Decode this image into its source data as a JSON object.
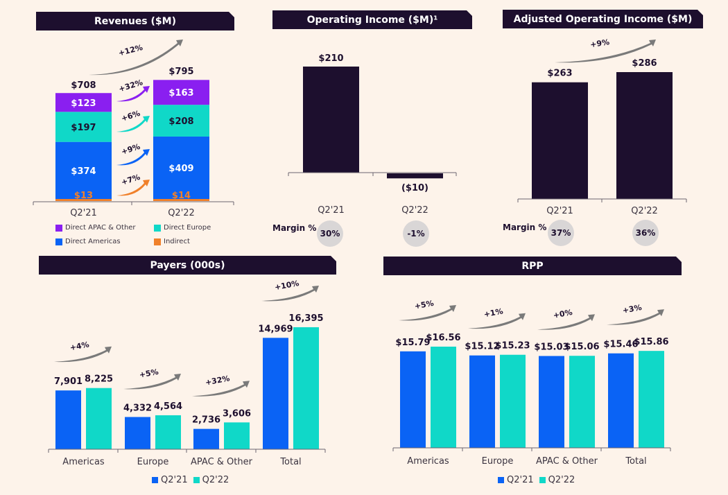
{
  "colors": {
    "dark": "#1d0f2e",
    "apac": "#8a1ff0",
    "europe": "#10d8c8",
    "americas": "#0a63f5",
    "indirect": "#f0802a",
    "arrow": "#7a7a7a",
    "bubble": "#d9d6d6"
  },
  "chart_data": [
    {
      "id": "revenues",
      "type": "bar",
      "stacked": true,
      "title": "Revenues ($M)",
      "categories": [
        "Q2'21",
        "Q2'22"
      ],
      "series": [
        {
          "name": "Indirect",
          "values": [
            13,
            14
          ],
          "labels": [
            "$13",
            "$14"
          ],
          "growth": "+7%"
        },
        {
          "name": "Direct Americas",
          "values": [
            374,
            409
          ],
          "labels": [
            "$374",
            "$409"
          ],
          "growth": "+9%"
        },
        {
          "name": "Direct Europe",
          "values": [
            197,
            208
          ],
          "labels": [
            "$197",
            "$208"
          ],
          "growth": "+6%"
        },
        {
          "name": "Direct APAC & Other",
          "values": [
            123,
            163
          ],
          "labels": [
            "$123",
            "$163"
          ],
          "growth": "+32%"
        }
      ],
      "totals": [
        708,
        795
      ],
      "total_labels": [
        "$708",
        "$795"
      ],
      "total_growth": "+12%",
      "legend": [
        "Direct APAC & Other",
        "Direct Europe",
        "Direct Americas",
        "Indirect"
      ]
    },
    {
      "id": "operating_income",
      "type": "bar",
      "title": "Operating Income ($M)¹",
      "categories": [
        "Q2'21",
        "Q2'22"
      ],
      "values": [
        210,
        -10
      ],
      "labels": [
        "$210",
        "($10)"
      ],
      "margin_label": "Margin %",
      "margins": [
        "30%",
        "-1%"
      ]
    },
    {
      "id": "adjusted_operating_income",
      "type": "bar",
      "title": "Adjusted Operating Income ($M)",
      "categories": [
        "Q2'21",
        "Q2'22"
      ],
      "values": [
        263,
        286
      ],
      "labels": [
        "$263",
        "$286"
      ],
      "growth": "+9%",
      "margin_label": "Margin %",
      "margins": [
        "37%",
        "36%"
      ]
    },
    {
      "id": "payers",
      "type": "bar",
      "title": "Payers (000s)",
      "categories": [
        "Americas",
        "Europe",
        "APAC & Other",
        "Total"
      ],
      "series": [
        {
          "name": "Q2'21",
          "values": [
            7901,
            4332,
            2736,
            14969
          ],
          "labels": [
            "7,901",
            "4,332",
            "2,736",
            "14,969"
          ]
        },
        {
          "name": "Q2'22",
          "values": [
            8225,
            4564,
            3606,
            16395
          ],
          "labels": [
            "8,225",
            "4,564",
            "3,606",
            "16,395"
          ]
        }
      ],
      "growth": [
        "+4%",
        "+5%",
        "+32%",
        "+10%"
      ],
      "legend": [
        "Q2'21",
        "Q2'22"
      ]
    },
    {
      "id": "rpp",
      "type": "bar",
      "title": "RPP",
      "categories": [
        "Americas",
        "Europe",
        "APAC & Other",
        "Total"
      ],
      "series": [
        {
          "name": "Q2'21",
          "values": [
            15.79,
            15.12,
            15.03,
            15.46
          ],
          "labels": [
            "$15.79",
            "$15.12",
            "$15.03",
            "$15.46"
          ]
        },
        {
          "name": "Q2'22",
          "values": [
            16.56,
            15.23,
            15.06,
            15.86
          ],
          "labels": [
            "$16.56",
            "$15.23",
            "$15.06",
            "$15.86"
          ]
        }
      ],
      "growth": [
        "+5%",
        "+1%",
        "+0%",
        "+3%"
      ],
      "legend": [
        "Q2'21",
        "Q2'22"
      ]
    }
  ]
}
